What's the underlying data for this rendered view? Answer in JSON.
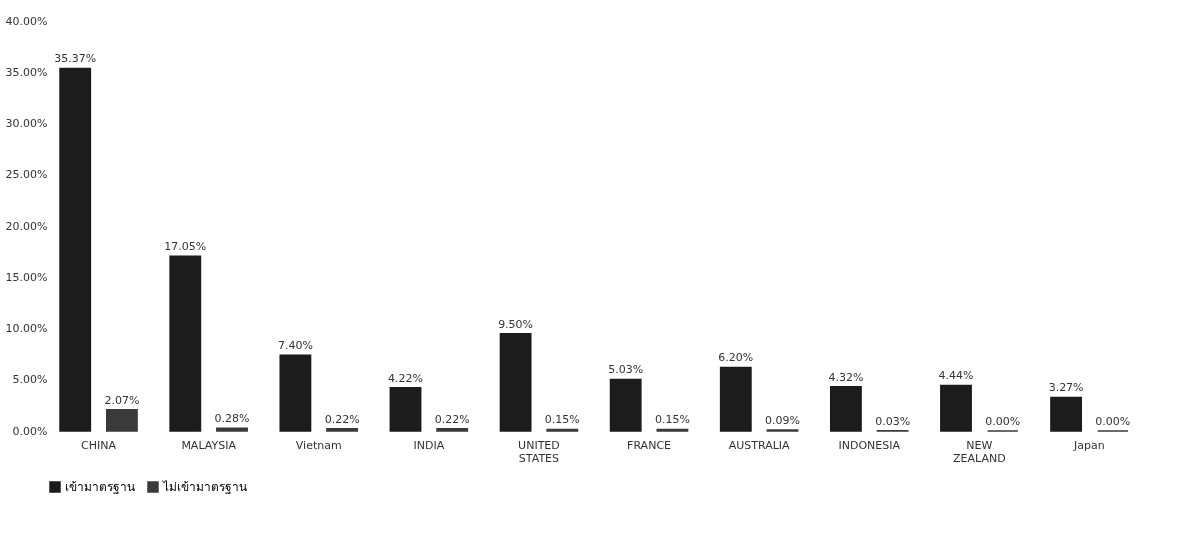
{
  "chart_data": {
    "type": "bar",
    "categories": [
      "CHINA",
      "MALAYSIA",
      "Vietnam",
      "INDIA",
      "UNITED STATES",
      "FRANCE",
      "AUSTRALIA",
      "INDONESIA",
      "NEW ZEALAND",
      "Japan"
    ],
    "series": [
      {
        "name": "เข้ามาตรฐาน",
        "color": "#1c1c1c",
        "values": [
          35.37,
          17.05,
          7.4,
          4.22,
          9.5,
          5.03,
          6.2,
          4.32,
          4.44,
          3.27
        ],
        "value_labels": [
          "35.37%",
          "17.05%",
          "7.40%",
          "4.22%",
          "9.50%",
          "5.03%",
          "6.20%",
          "4.32%",
          "4.44%",
          "3.27%"
        ]
      },
      {
        "name": "ไม่เข้ามาตรฐาน",
        "color": "#3a3a3a",
        "values": [
          2.07,
          0.28,
          0.22,
          0.22,
          0.15,
          0.15,
          0.09,
          0.03,
          0.0,
          0.0
        ],
        "value_labels": [
          "2.07%",
          "0.28%",
          "0.22%",
          "0.22%",
          "0.15%",
          "0.15%",
          "0.09%",
          "0.03%",
          "0.00%",
          "0.00%"
        ]
      }
    ],
    "ylim": [
      0,
      40
    ],
    "yticks": [
      {
        "value": 0,
        "label": "0.00%"
      },
      {
        "value": 5,
        "label": "5.00%"
      },
      {
        "value": 10,
        "label": "10.00%"
      },
      {
        "value": 15,
        "label": "15.00%"
      },
      {
        "value": 20,
        "label": "20.00%"
      },
      {
        "value": 25,
        "label": "25.00%"
      },
      {
        "value": 30,
        "label": "30.00%"
      },
      {
        "value": 35,
        "label": "35.00%"
      },
      {
        "value": 40,
        "label": "40.00%"
      }
    ],
    "grid": false,
    "legend": "bottom"
  }
}
